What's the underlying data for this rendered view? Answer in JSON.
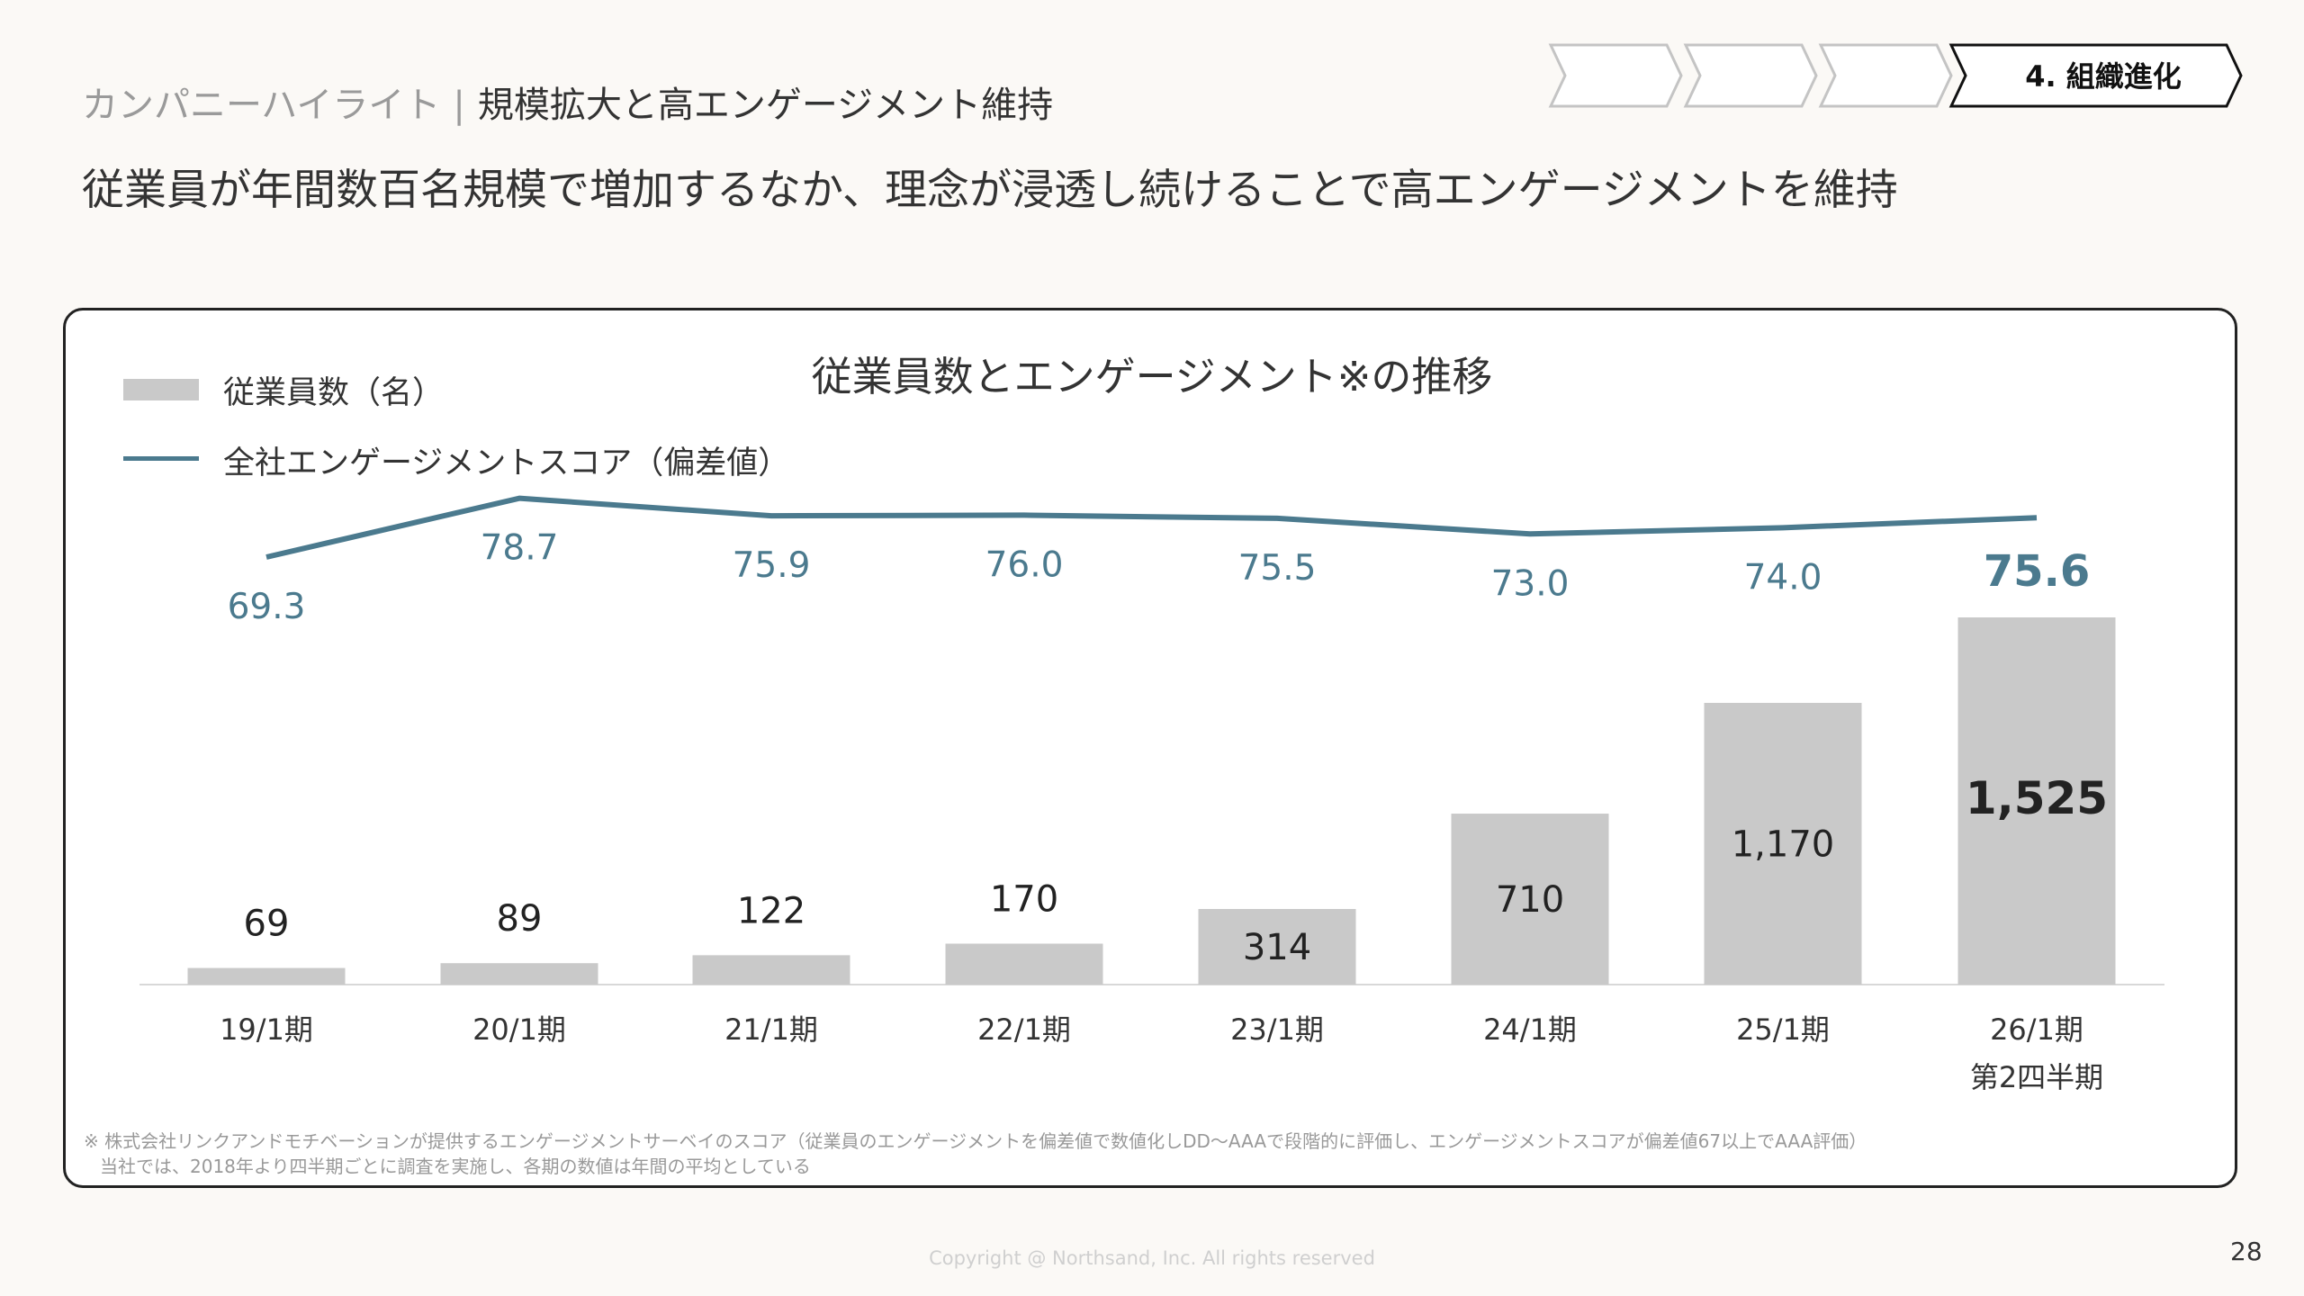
{
  "header": {
    "section_label": "カンパニーハイライト",
    "separator": "|",
    "section_title": "規模拡大と高エンゲージメント維持",
    "headline": "従業員が年間数百名規模で増加するなか、理念が浸透し続けることで高エンゲージメントを維持"
  },
  "steps": {
    "items": [
      "",
      "",
      "",
      "4. 組織進化"
    ],
    "active_index": 3
  },
  "chart_data": {
    "type": "bar+line",
    "title": "従業員数とエンゲージメント※の推移",
    "categories": [
      "19/1期",
      "20/1期",
      "21/1期",
      "22/1期",
      "23/1期",
      "24/1期",
      "25/1期",
      "26/1期"
    ],
    "category_sublabels": [
      "",
      "",
      "",
      "",
      "",
      "",
      "",
      "第2四半期"
    ],
    "series": [
      {
        "name": "従業員数（名）",
        "type": "bar",
        "color": "#c9c9c9",
        "values": [
          69,
          89,
          122,
          170,
          314,
          710,
          1170,
          1525
        ],
        "labels": [
          "69",
          "89",
          "122",
          "170",
          "314",
          "710",
          "1,170",
          "1,525"
        ]
      },
      {
        "name": "全社エンゲージメントスコア（偏差値）",
        "type": "line",
        "color": "#4b7a8e",
        "values": [
          69.3,
          78.7,
          75.9,
          76.0,
          75.5,
          73.0,
          74.0,
          75.6
        ],
        "labels": [
          "69.3",
          "78.7",
          "75.9",
          "76.0",
          "75.5",
          "73.0",
          "74.0",
          "75.6"
        ]
      }
    ],
    "highlight_last": true,
    "legend_position": "top-left",
    "grid": false
  },
  "footnote": {
    "line1": "※ 株式会社リンクアンドモチベーションが提供するエンゲージメントサーベイのスコア（従業員のエンゲージメントを偏差値で数値化しDD～AAAで段階的に評価し、エンゲージメントスコアが偏差値67以上でAAA評価）",
    "line2": "当社では、2018年より四半期ごとに調査を実施し、各期の数値は年間の平均としている"
  },
  "footer": {
    "copyright": "Copyright @ Northsand, Inc. All rights reserved",
    "page_number": "28"
  }
}
